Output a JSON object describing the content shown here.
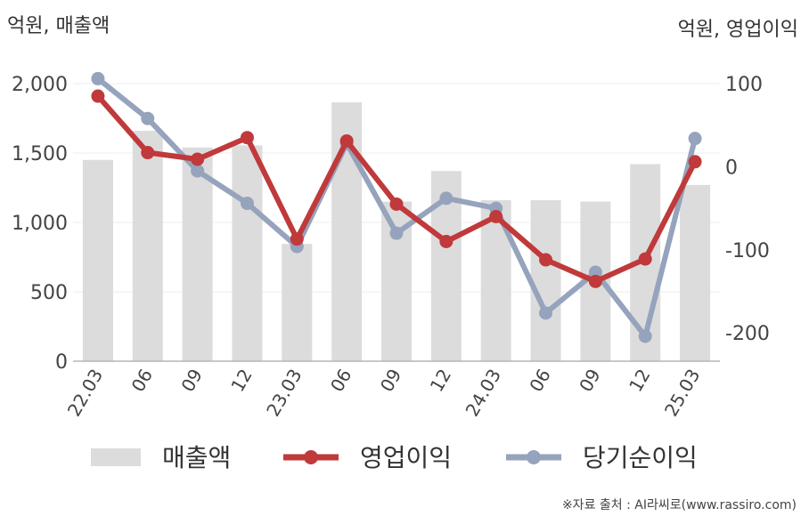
{
  "chart_data": {
    "type": "bar+line",
    "categories": [
      "22.03",
      "06",
      "09",
      "12",
      "23.03",
      "06",
      "09",
      "12",
      "24.03",
      "06",
      "09",
      "12",
      "25.03"
    ],
    "left_axis": {
      "label": "억원, 매출액",
      "ticks": [
        "0",
        "500",
        "1,000",
        "1,500",
        "2,000"
      ],
      "range": [
        0,
        2000
      ]
    },
    "right_axis": {
      "label": "억원, 영업이익",
      "ticks": [
        "-200",
        "-100",
        "0",
        "100"
      ],
      "range": [
        -234,
        100
      ]
    },
    "series": [
      {
        "name": "매출액",
        "kind": "bar",
        "axis": "left",
        "color": "#dcdcdc",
        "values": [
          1450,
          1660,
          1540,
          1555,
          845,
          1865,
          1150,
          1370,
          1160,
          1160,
          1150,
          1420,
          1270
        ]
      },
      {
        "name": "영업이익",
        "kind": "line",
        "axis": "right",
        "color": "#c0393b",
        "values": [
          85,
          17,
          9,
          35,
          -87,
          31,
          -45,
          -90,
          -60,
          -112,
          -138,
          -111,
          6
        ]
      },
      {
        "name": "당기순이익",
        "kind": "line",
        "axis": "right",
        "color": "#96a3bd",
        "values": [
          106,
          58,
          -5,
          -44,
          -96,
          28,
          -80,
          -38,
          -50,
          -176,
          -127,
          -204,
          34
        ]
      }
    ],
    "grid": true,
    "legend_position": "bottom"
  },
  "source_note": "※자료 출처 : AI라씨로(www.rassiro.com)"
}
